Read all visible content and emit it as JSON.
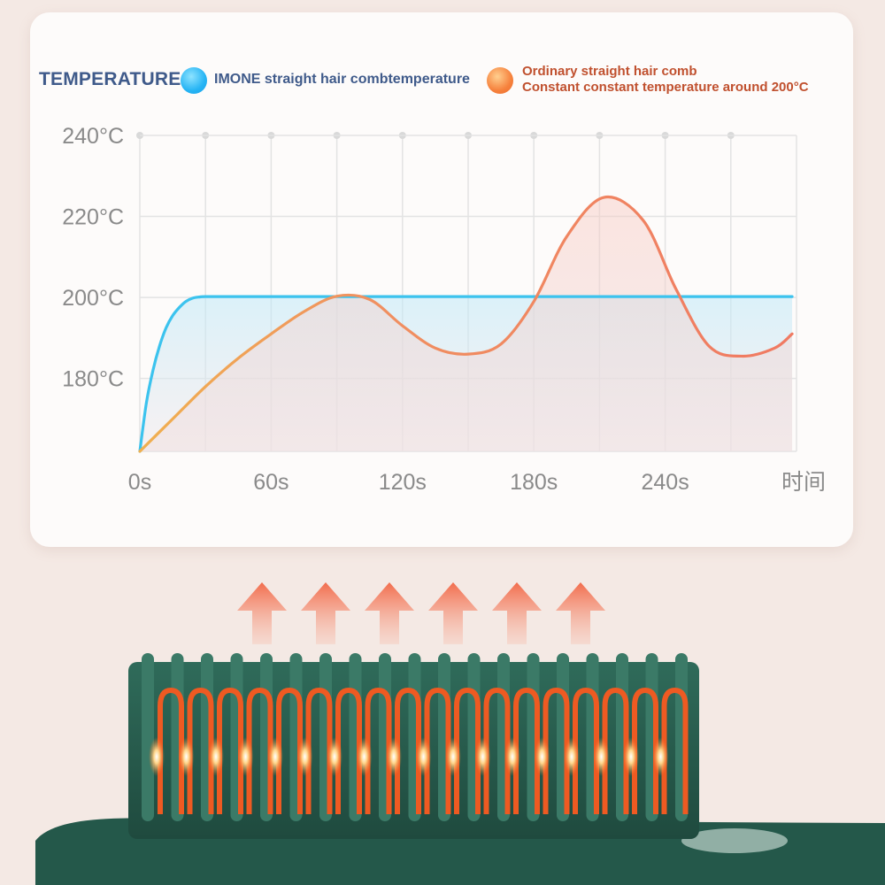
{
  "legend": {
    "title": "TEMPERATURE",
    "imone_label": "IMONE straight hair combtemperature",
    "ordinary_line1": "Ordinary straight hair comb",
    "ordinary_line2": "Constant constant temperature around 200°C"
  },
  "colors": {
    "imone": "#3cc3ee",
    "ordinary": "#f08060",
    "axis_text": "#8a8a8a",
    "grid": "#e3e3e3"
  },
  "chart_data": {
    "type": "line",
    "xlabel": "时间",
    "ylabel": "",
    "x_ticks": [
      0,
      60,
      120,
      180,
      240
    ],
    "x_tick_labels": [
      "0s",
      "60s",
      "120s",
      "180s",
      "240s"
    ],
    "y_ticks": [
      180,
      200,
      220,
      240
    ],
    "y_tick_labels": [
      "180°C",
      "200°C",
      "220°C",
      "240°C"
    ],
    "xlim": [
      0,
      300
    ],
    "ylim": [
      162,
      240
    ],
    "grid": true,
    "legend_position": "top",
    "series": [
      {
        "name": "IMONE straight hair combtemperature",
        "color": "#3cc3ee",
        "x": [
          0,
          3,
          6,
          9,
          12,
          15,
          18,
          21,
          24,
          27,
          30,
          40,
          60,
          90,
          120,
          150,
          180,
          210,
          240,
          270,
          298
        ],
        "y": [
          162,
          174,
          182,
          188,
          192.5,
          195.5,
          197.5,
          199,
          199.8,
          200.1,
          200.2,
          200.2,
          200.2,
          200.2,
          200.2,
          200.2,
          200.2,
          200.2,
          200.2,
          200.2,
          200.2
        ]
      },
      {
        "name": "Ordinary straight hair comb",
        "color": "#f08060",
        "x": [
          0,
          15,
          30,
          45,
          60,
          75,
          90,
          105,
          120,
          135,
          150,
          165,
          180,
          195,
          212,
          230,
          245,
          260,
          275,
          290,
          298
        ],
        "y": [
          162,
          170,
          178,
          185,
          191,
          196.5,
          200.3,
          199.5,
          193,
          187.5,
          186,
          188.5,
          199,
          215,
          224.7,
          219,
          202,
          188,
          185.5,
          187.5,
          191
        ]
      }
    ]
  },
  "icons": [
    "heat-arrow-icon",
    "comb-illustration"
  ]
}
